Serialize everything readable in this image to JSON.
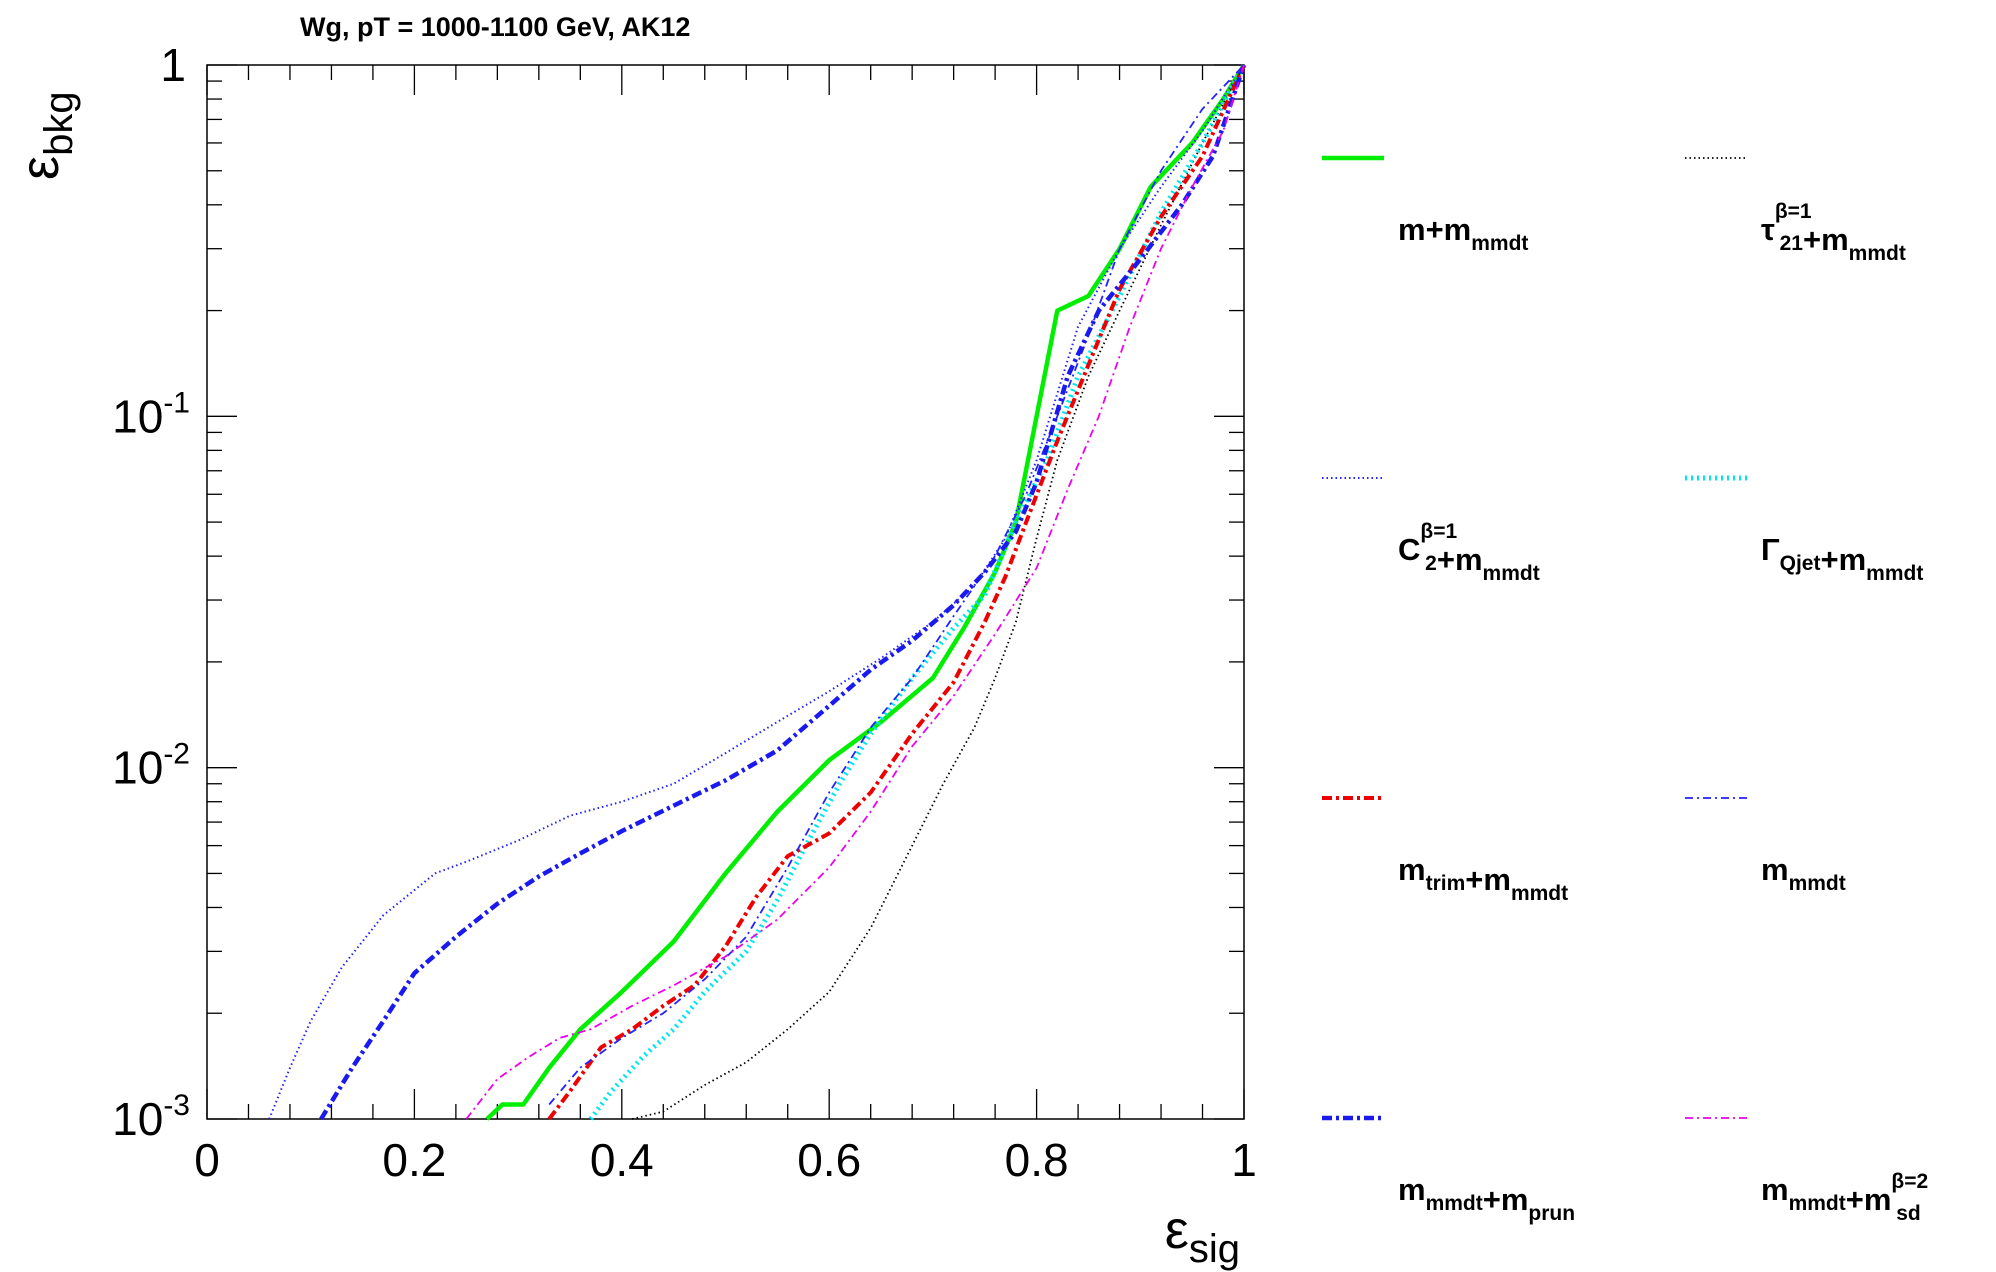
{
  "chart_data": {
    "type": "line",
    "title": "Wg, pT = 1000-1100 GeV, AK12",
    "xlabel": {
      "base": "ε",
      "sub": "sig"
    },
    "ylabel": {
      "base": "ε",
      "sub": "bkg"
    },
    "xlim": [
      0,
      1
    ],
    "ylim": [
      0.001,
      1
    ],
    "yscale": "log",
    "grid": false,
    "legend_position": "right",
    "x_ticks": [
      {
        "v": 0,
        "label": "0"
      },
      {
        "v": 0.2,
        "label": "0.2"
      },
      {
        "v": 0.4,
        "label": "0.4"
      },
      {
        "v": 0.6,
        "label": "0.6"
      },
      {
        "v": 0.8,
        "label": "0.8"
      },
      {
        "v": 1,
        "label": "1"
      }
    ],
    "y_ticks": [
      {
        "v": 0.001,
        "base": "10",
        "exp": "-3"
      },
      {
        "v": 0.01,
        "base": "10",
        "exp": "-2"
      },
      {
        "v": 0.1,
        "base": "10",
        "exp": "-1"
      },
      {
        "v": 1,
        "base": "1",
        "exp": ""
      }
    ],
    "series": [
      {
        "legend": [
          {
            "t": "m+m"
          },
          {
            "t": "mmdt",
            "sub": true
          }
        ],
        "color": "#00ee00",
        "style": "solid",
        "width": 4.5,
        "x": [
          0.27,
          0.285,
          0.305,
          0.33,
          0.36,
          0.4,
          0.45,
          0.5,
          0.55,
          0.6,
          0.65,
          0.7,
          0.73,
          0.76,
          0.78,
          0.8,
          0.82,
          0.85,
          0.88,
          0.91,
          0.95,
          0.98,
          1.0
        ],
        "y": [
          0.001,
          0.0011,
          0.0011,
          0.0014,
          0.0018,
          0.0023,
          0.0032,
          0.005,
          0.0075,
          0.0105,
          0.0135,
          0.018,
          0.025,
          0.036,
          0.05,
          0.1,
          0.2,
          0.22,
          0.3,
          0.45,
          0.6,
          0.8,
          1.0
        ]
      },
      {
        "legend": [
          {
            "t": "τ"
          },
          {
            "t": "21",
            "sub": true,
            "sup": "β=1"
          },
          {
            "t": "+m"
          },
          {
            "t": "mmdt",
            "sub": true
          }
        ],
        "color": "#000000",
        "style": "dotted",
        "width": 1.8,
        "x": [
          0.41,
          0.44,
          0.48,
          0.52,
          0.56,
          0.6,
          0.64,
          0.68,
          0.71,
          0.74,
          0.76,
          0.78,
          0.8,
          0.82,
          0.85,
          0.88,
          0.92,
          0.96,
          1.0
        ],
        "y": [
          0.001,
          0.00105,
          0.00125,
          0.00145,
          0.0018,
          0.0023,
          0.0035,
          0.006,
          0.009,
          0.013,
          0.018,
          0.026,
          0.045,
          0.075,
          0.13,
          0.2,
          0.35,
          0.6,
          1.0
        ]
      },
      {
        "legend": [
          {
            "t": "C"
          },
          {
            "t": "2",
            "sub": true,
            "sup": "β=1"
          },
          {
            "t": "+m"
          },
          {
            "t": "mmdt",
            "sub": true
          }
        ],
        "color": "#2222ff",
        "style": "dotted",
        "width": 2,
        "x": [
          0.06,
          0.08,
          0.1,
          0.13,
          0.17,
          0.22,
          0.25,
          0.3,
          0.35,
          0.4,
          0.45,
          0.5,
          0.55,
          0.6,
          0.65,
          0.7,
          0.74,
          0.77,
          0.8,
          0.84,
          0.88,
          0.92,
          0.96,
          1.0
        ],
        "y": [
          0.001,
          0.0014,
          0.0019,
          0.0027,
          0.0038,
          0.005,
          0.0054,
          0.0062,
          0.0073,
          0.008,
          0.009,
          0.011,
          0.0135,
          0.0165,
          0.0205,
          0.026,
          0.033,
          0.045,
          0.075,
          0.18,
          0.3,
          0.45,
          0.65,
          1.0
        ]
      },
      {
        "legend": [
          {
            "t": "Γ"
          },
          {
            "t": "Qjet",
            "sub": true
          },
          {
            "t": "+m"
          },
          {
            "t": "mmdt",
            "sub": true
          }
        ],
        "color": "#00e5ee",
        "style": "dotted",
        "width": 5,
        "x": [
          0.37,
          0.39,
          0.42,
          0.45,
          0.48,
          0.52,
          0.55,
          0.58,
          0.61,
          0.64,
          0.68,
          0.72,
          0.75,
          0.78,
          0.81,
          0.84,
          0.88,
          0.92,
          0.96,
          1.0
        ],
        "y": [
          0.001,
          0.0012,
          0.0015,
          0.0018,
          0.0023,
          0.003,
          0.0042,
          0.0062,
          0.009,
          0.0125,
          0.018,
          0.025,
          0.031,
          0.05,
          0.075,
          0.13,
          0.22,
          0.38,
          0.6,
          1.0
        ]
      },
      {
        "legend": [
          {
            "t": "m"
          },
          {
            "t": "trim",
            "sub": true
          },
          {
            "t": "+m"
          },
          {
            "t": "mmdt",
            "sub": true
          }
        ],
        "color": "#ee0000",
        "style": "dashdot",
        "width": 4,
        "x": [
          0.33,
          0.35,
          0.38,
          0.41,
          0.44,
          0.47,
          0.5,
          0.53,
          0.56,
          0.6,
          0.64,
          0.68,
          0.72,
          0.75,
          0.77,
          0.79,
          0.82,
          0.85,
          0.88,
          0.92,
          0.96,
          1.0
        ],
        "y": [
          0.001,
          0.0012,
          0.0016,
          0.0018,
          0.0021,
          0.0024,
          0.0031,
          0.0043,
          0.0056,
          0.0065,
          0.0085,
          0.0125,
          0.0175,
          0.026,
          0.035,
          0.05,
          0.085,
          0.14,
          0.23,
          0.37,
          0.55,
          1.0
        ]
      },
      {
        "legend": [
          {
            "t": "m"
          },
          {
            "t": "mmdt",
            "sub": true
          }
        ],
        "color": "#2222ff",
        "style": "dashdot",
        "width": 1.8,
        "x": [
          0.33,
          0.36,
          0.4,
          0.44,
          0.48,
          0.52,
          0.56,
          0.6,
          0.64,
          0.68,
          0.72,
          0.76,
          0.79,
          0.82,
          0.85,
          0.88,
          0.92,
          0.96,
          1.0
        ],
        "y": [
          0.0011,
          0.0014,
          0.0017,
          0.002,
          0.0025,
          0.0033,
          0.0052,
          0.0085,
          0.013,
          0.018,
          0.027,
          0.04,
          0.06,
          0.1,
          0.17,
          0.3,
          0.5,
          0.75,
          1.0
        ]
      },
      {
        "legend": [
          {
            "t": "m"
          },
          {
            "t": "mmdt",
            "sub": true
          },
          {
            "t": "+m"
          },
          {
            "t": "prun",
            "sub": true
          }
        ],
        "color": "#1a1aee",
        "style": "dashdot",
        "width": 4.5,
        "x": [
          0.11,
          0.14,
          0.17,
          0.2,
          0.24,
          0.28,
          0.32,
          0.36,
          0.4,
          0.45,
          0.5,
          0.55,
          0.6,
          0.64,
          0.68,
          0.72,
          0.75,
          0.78,
          0.8,
          0.83,
          0.86,
          0.9,
          0.94,
          0.97,
          1.0
        ],
        "y": [
          0.001,
          0.0014,
          0.0019,
          0.0026,
          0.0033,
          0.0041,
          0.0049,
          0.0057,
          0.0066,
          0.0078,
          0.0092,
          0.0112,
          0.015,
          0.019,
          0.023,
          0.029,
          0.036,
          0.047,
          0.065,
          0.13,
          0.2,
          0.28,
          0.4,
          0.55,
          1.0
        ]
      },
      {
        "legend": [
          {
            "t": "m"
          },
          {
            "t": "mmdt",
            "sub": true
          },
          {
            "t": "+m"
          },
          {
            "t": "sd",
            "sub": true,
            "sup": "β=2"
          }
        ],
        "color": "#ee00ee",
        "style": "dashdot",
        "width": 1.8,
        "x": [
          0.25,
          0.28,
          0.31,
          0.34,
          0.37,
          0.41,
          0.45,
          0.5,
          0.55,
          0.6,
          0.64,
          0.68,
          0.72,
          0.76,
          0.8,
          0.83,
          0.86,
          0.89,
          0.92,
          0.95,
          0.98,
          1.0
        ],
        "y": [
          0.001,
          0.0013,
          0.0015,
          0.0017,
          0.0018,
          0.0021,
          0.0024,
          0.0029,
          0.0037,
          0.0052,
          0.0075,
          0.0115,
          0.016,
          0.024,
          0.037,
          0.062,
          0.1,
          0.18,
          0.3,
          0.45,
          0.65,
          1.0
        ]
      }
    ]
  }
}
